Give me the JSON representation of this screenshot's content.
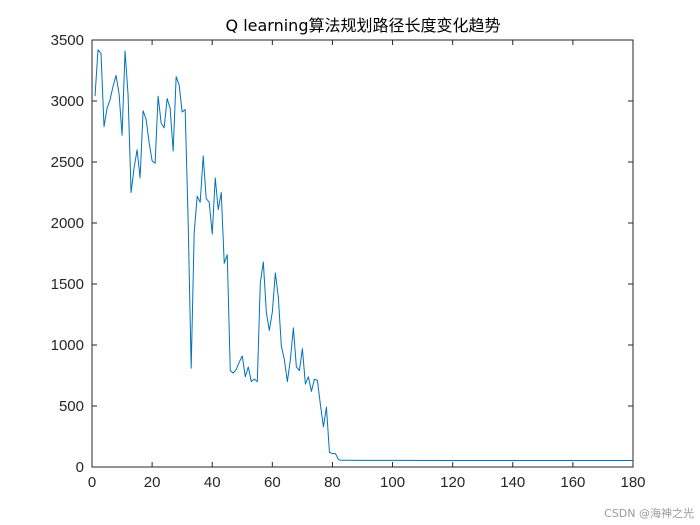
{
  "chart_data": {
    "type": "line",
    "title": "Q learning算法规划路径长度变化趋势",
    "xlabel": "",
    "ylabel": "",
    "xlim": [
      0,
      180
    ],
    "ylim": [
      0,
      3500
    ],
    "xticks": [
      0,
      20,
      40,
      60,
      80,
      100,
      120,
      140,
      160,
      180
    ],
    "yticks": [
      0,
      500,
      1000,
      1500,
      2000,
      2500,
      3000,
      3500
    ],
    "grid": false,
    "legend": "none",
    "series": [
      {
        "color": "#0072BD",
        "x": [
          1,
          2,
          3,
          4,
          5,
          6,
          7,
          8,
          9,
          10,
          11,
          12,
          13,
          14,
          15,
          16,
          17,
          18,
          19,
          20,
          21,
          22,
          23,
          24,
          25,
          26,
          27,
          28,
          29,
          30,
          31,
          32,
          33,
          34,
          35,
          36,
          37,
          38,
          39,
          40,
          41,
          42,
          43,
          44,
          45,
          46,
          47,
          48,
          49,
          50,
          51,
          52,
          53,
          54,
          55,
          56,
          57,
          58,
          59,
          60,
          61,
          62,
          63,
          64,
          65,
          66,
          67,
          68,
          69,
          70,
          71,
          72,
          73,
          74,
          75,
          76,
          77,
          78,
          79,
          80,
          81,
          82,
          83,
          84,
          85,
          90,
          100,
          120,
          140,
          160,
          180
        ],
        "y": [
          3040,
          3420,
          3390,
          2790,
          2940,
          3010,
          3120,
          3210,
          3060,
          2720,
          3410,
          3050,
          2250,
          2450,
          2600,
          2370,
          2920,
          2850,
          2660,
          2510,
          2490,
          3040,
          2820,
          2780,
          3020,
          2940,
          2590,
          3200,
          3130,
          2910,
          2930,
          2000,
          810,
          1920,
          2220,
          2170,
          2550,
          2200,
          2170,
          1910,
          2370,
          2110,
          2250,
          1670,
          1740,
          790,
          770,
          800,
          860,
          910,
          740,
          820,
          700,
          720,
          700,
          1510,
          1680,
          1270,
          1120,
          1270,
          1590,
          1390,
          990,
          880,
          700,
          880,
          1140,
          820,
          790,
          970,
          680,
          740,
          620,
          720,
          710,
          510,
          330,
          490,
          120,
          110,
          110,
          60,
          55,
          55,
          55,
          54,
          54,
          53,
          53,
          53,
          53
        ]
      }
    ]
  },
  "watermark": "CSDN @海神之光"
}
